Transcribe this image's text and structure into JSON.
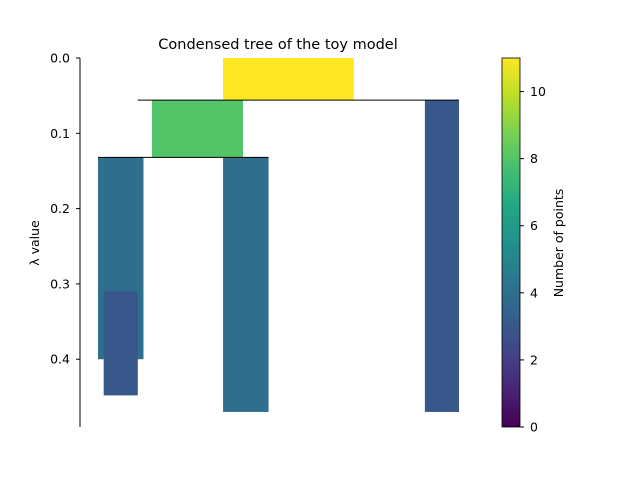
{
  "chart_data": {
    "type": "icicle",
    "title": "Condensed tree of the toy model",
    "ylabel": "λ value",
    "ylim": [
      0,
      0.49
    ],
    "y_inverted": true,
    "yticks": [
      "0.0",
      "0.1",
      "0.2",
      "0.3",
      "0.4"
    ],
    "yticks_values": [
      0.0,
      0.1,
      0.2,
      0.3,
      0.4
    ],
    "colorbar": {
      "label": "Number of points",
      "range": [
        0,
        11
      ],
      "ticks": [
        "0",
        "2",
        "4",
        "6",
        "8",
        "10"
      ],
      "ticks_values": [
        0,
        2,
        4,
        6,
        8,
        10
      ],
      "colormap": "viridis"
    },
    "clusters": [
      {
        "id": "root",
        "size": 11,
        "lambda_birth": 0.0,
        "lambda_death": 0.056,
        "x_span": [
          0.44,
          0.9
        ]
      },
      {
        "id": "left",
        "size": 8,
        "lambda_birth": 0.056,
        "lambda_death": 0.132,
        "x_span": [
          0.19,
          0.51
        ]
      },
      {
        "id": "right",
        "size": 3,
        "lambda_birth": 0.056,
        "lambda_death": 0.47,
        "x_span": [
          1.15,
          1.27
        ]
      },
      {
        "id": "left-left",
        "size": 4,
        "lambda_birth": 0.132,
        "lambda_death": 0.4,
        "x_span": [
          0.0,
          0.16
        ]
      },
      {
        "id": "left-left-leaf",
        "size": 3,
        "lambda_birth": 0.31,
        "lambda_death": 0.448,
        "x_span": [
          0.02,
          0.14
        ]
      },
      {
        "id": "left-right",
        "size": 4,
        "lambda_birth": 0.132,
        "lambda_death": 0.47,
        "x_span": [
          0.44,
          0.6
        ]
      }
    ],
    "split_lines": [
      {
        "lambda": 0.056,
        "x_span": [
          0.14,
          1.27
        ]
      },
      {
        "lambda": 0.132,
        "x_span": [
          0.0,
          0.6
        ]
      }
    ]
  }
}
